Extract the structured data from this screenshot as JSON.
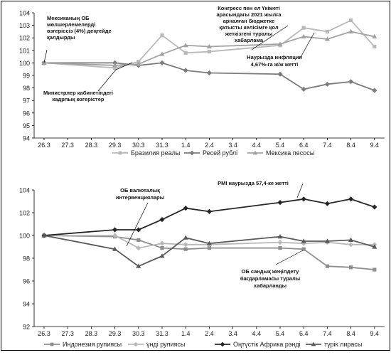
{
  "chart_data": [
    {
      "type": "line",
      "x": [
        "26.3",
        "27.3",
        "28.3",
        "29.3",
        "30.3",
        "31.3",
        "1.4",
        "2.4",
        "3.4",
        "4.4",
        "5.4",
        "6.4",
        "7.4",
        "8.4",
        "9.4"
      ],
      "ylim": [
        94,
        104
      ],
      "yticks": [
        94,
        95,
        96,
        97,
        98,
        99,
        100,
        101,
        102,
        103,
        104
      ],
      "grid": false,
      "legend_position": "bottom",
      "series": [
        {
          "name": "Бразилия реалы",
          "color": "#b9b9b9",
          "marker": "square",
          "values": [
            100,
            null,
            null,
            99.6,
            100.1,
            102.2,
            100.8,
            100.9,
            null,
            null,
            101.4,
            102.8,
            102.5,
            103.4,
            101.3
          ]
        },
        {
          "name": "Ресей рублі",
          "color": "#7c7c7c",
          "marker": "diamond",
          "values": [
            100,
            null,
            null,
            100.0,
            99.8,
            100.0,
            99.4,
            99.2,
            null,
            null,
            99.1,
            97.9,
            98.3,
            98.5,
            97.8
          ]
        },
        {
          "name": "Мексика песосы",
          "color": "#a2a2a2",
          "marker": "triangle",
          "values": [
            100,
            null,
            null,
            99.8,
            99.9,
            100.7,
            101.4,
            101.3,
            null,
            null,
            101.5,
            102.1,
            101.9,
            102.5,
            102.1
          ]
        }
      ],
      "annotations": [
        {
          "lines": [
            "Мексиканың ОБ",
            "мөлшерлемелерді",
            "өзгеріссіз (4%) деңгейде",
            "қалдырды"
          ]
        },
        {
          "lines": [
            "Министрлер кабинетіндегі",
            "кадрлық өзгерістер"
          ]
        },
        {
          "lines": [
            "Конгресс пен ел Үкіметі",
            "арасындағы 2021 жылға",
            "арналған бюджетке",
            "қатысты келісімге қол",
            "жеткізгені туралы",
            "хабарлама"
          ]
        },
        {
          "lines": [
            "Наурызда инфляция",
            "4,67%-ға ж/ж жетті"
          ]
        }
      ]
    },
    {
      "type": "line",
      "x": [
        "26.3",
        "27.3",
        "28.3",
        "29.3",
        "30.3",
        "31.3",
        "1.4",
        "2.4",
        "3.4",
        "4.4",
        "5.4",
        "6.4",
        "7.4",
        "8.4",
        "9.4"
      ],
      "ylim": [
        92,
        104
      ],
      "yticks": [
        92,
        94,
        96,
        98,
        100,
        102,
        104
      ],
      "grid": false,
      "legend_position": "bottom",
      "series": [
        {
          "name": "Индонезия рупиясы",
          "color": "#8e8e8e",
          "marker": "square",
          "values": [
            100,
            null,
            null,
            99.9,
            99.6,
            98.9,
            98.8,
            98.9,
            null,
            null,
            98.9,
            98.8,
            97.3,
            97.2,
            97.0
          ]
        },
        {
          "name": "үнді рупиясы",
          "color": "#b9b9b9",
          "marker": "diamond",
          "values": [
            100,
            null,
            null,
            100.0,
            98.9,
            99.3,
            99.2,
            99.2,
            null,
            null,
            99.4,
            99.3,
            99.4,
            99.2,
            99.2
          ]
        },
        {
          "name": "Оңтүстік Африка рэнді",
          "color": "#262626",
          "marker": "diamond",
          "values": [
            100,
            null,
            null,
            100.5,
            100.5,
            101.4,
            102.4,
            102.1,
            null,
            null,
            102.9,
            103.2,
            102.8,
            103.2,
            102.5
          ]
        },
        {
          "name": "түрік лирасы",
          "color": "#5a5a5a",
          "marker": "triangle",
          "values": [
            100,
            null,
            null,
            98.8,
            97.3,
            98.2,
            99.8,
            99.3,
            null,
            null,
            99.9,
            99.5,
            99.5,
            99.6,
            99.0
          ]
        }
      ],
      "annotations": [
        {
          "lines": [
            "ОБ валюталық",
            "интервенциялары"
          ]
        },
        {
          "lines": [
            "PMI наурызда 57,4-ке жетті"
          ]
        },
        {
          "lines": [
            "ОБ сандық жеңілдету",
            "бағдарламасы туралы",
            "хабарланды"
          ]
        }
      ]
    }
  ]
}
